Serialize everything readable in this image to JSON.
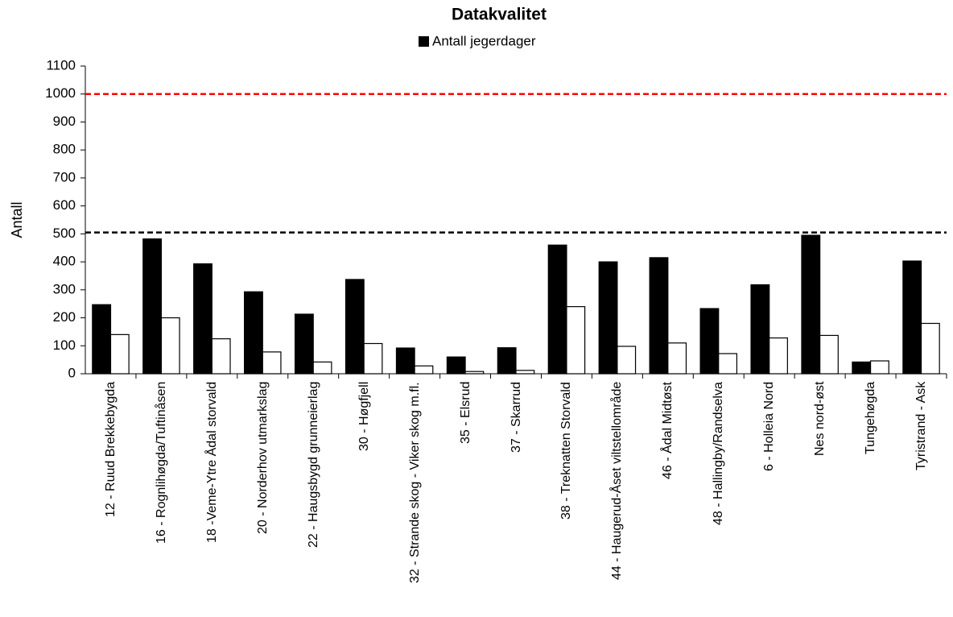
{
  "chart_data": {
    "type": "bar",
    "title": "Datakvalitet",
    "y_label": "Antall",
    "categories": [
      "12 - Ruud Brekkebygda",
      "16 - Rognlihøgda/Tuftinåsen",
      "18 -Veme-Ytre Ådal storvald",
      "20 - Norderhov utmarkslag",
      "22 - Haugsbygd grunneierlag",
      "30 - Høgfjell",
      "32 - Strande skog - Viker skog m.fl.",
      "35 - Elsrud",
      "37 - Skarrud",
      "38 - Treknatten Storvald",
      "44 - Haugerud-Åset viltstellområde",
      "46 - Ådal Midtøst",
      "48 - Hallingby/Randselva",
      "6 - Holleia Nord",
      "Nes nord-øst",
      "Tungehøgda",
      "Tyristrand - Ask"
    ],
    "series": [
      {
        "name": "Antall jegerdager",
        "color": "#000000",
        "values": [
          247,
          482,
          393,
          293,
          213,
          337,
          92,
          60,
          93,
          460,
          400,
          415,
          233,
          318,
          495,
          42,
          403
        ]
      },
      {
        "color": "#ffffff",
        "values": [
          140,
          200,
          125,
          78,
          42,
          108,
          28,
          8,
          12,
          240,
          98,
          110,
          72,
          128,
          137,
          46,
          180
        ]
      }
    ],
    "reference_lines": [
      {
        "value": 1000,
        "color": "#ff0000"
      },
      {
        "value": 505,
        "color": "#000000"
      }
    ],
    "ylim": [
      0,
      1100
    ],
    "yticks": [
      0,
      100,
      200,
      300,
      400,
      500,
      600,
      700,
      800,
      900,
      1000,
      1100
    ],
    "legend": "top"
  }
}
